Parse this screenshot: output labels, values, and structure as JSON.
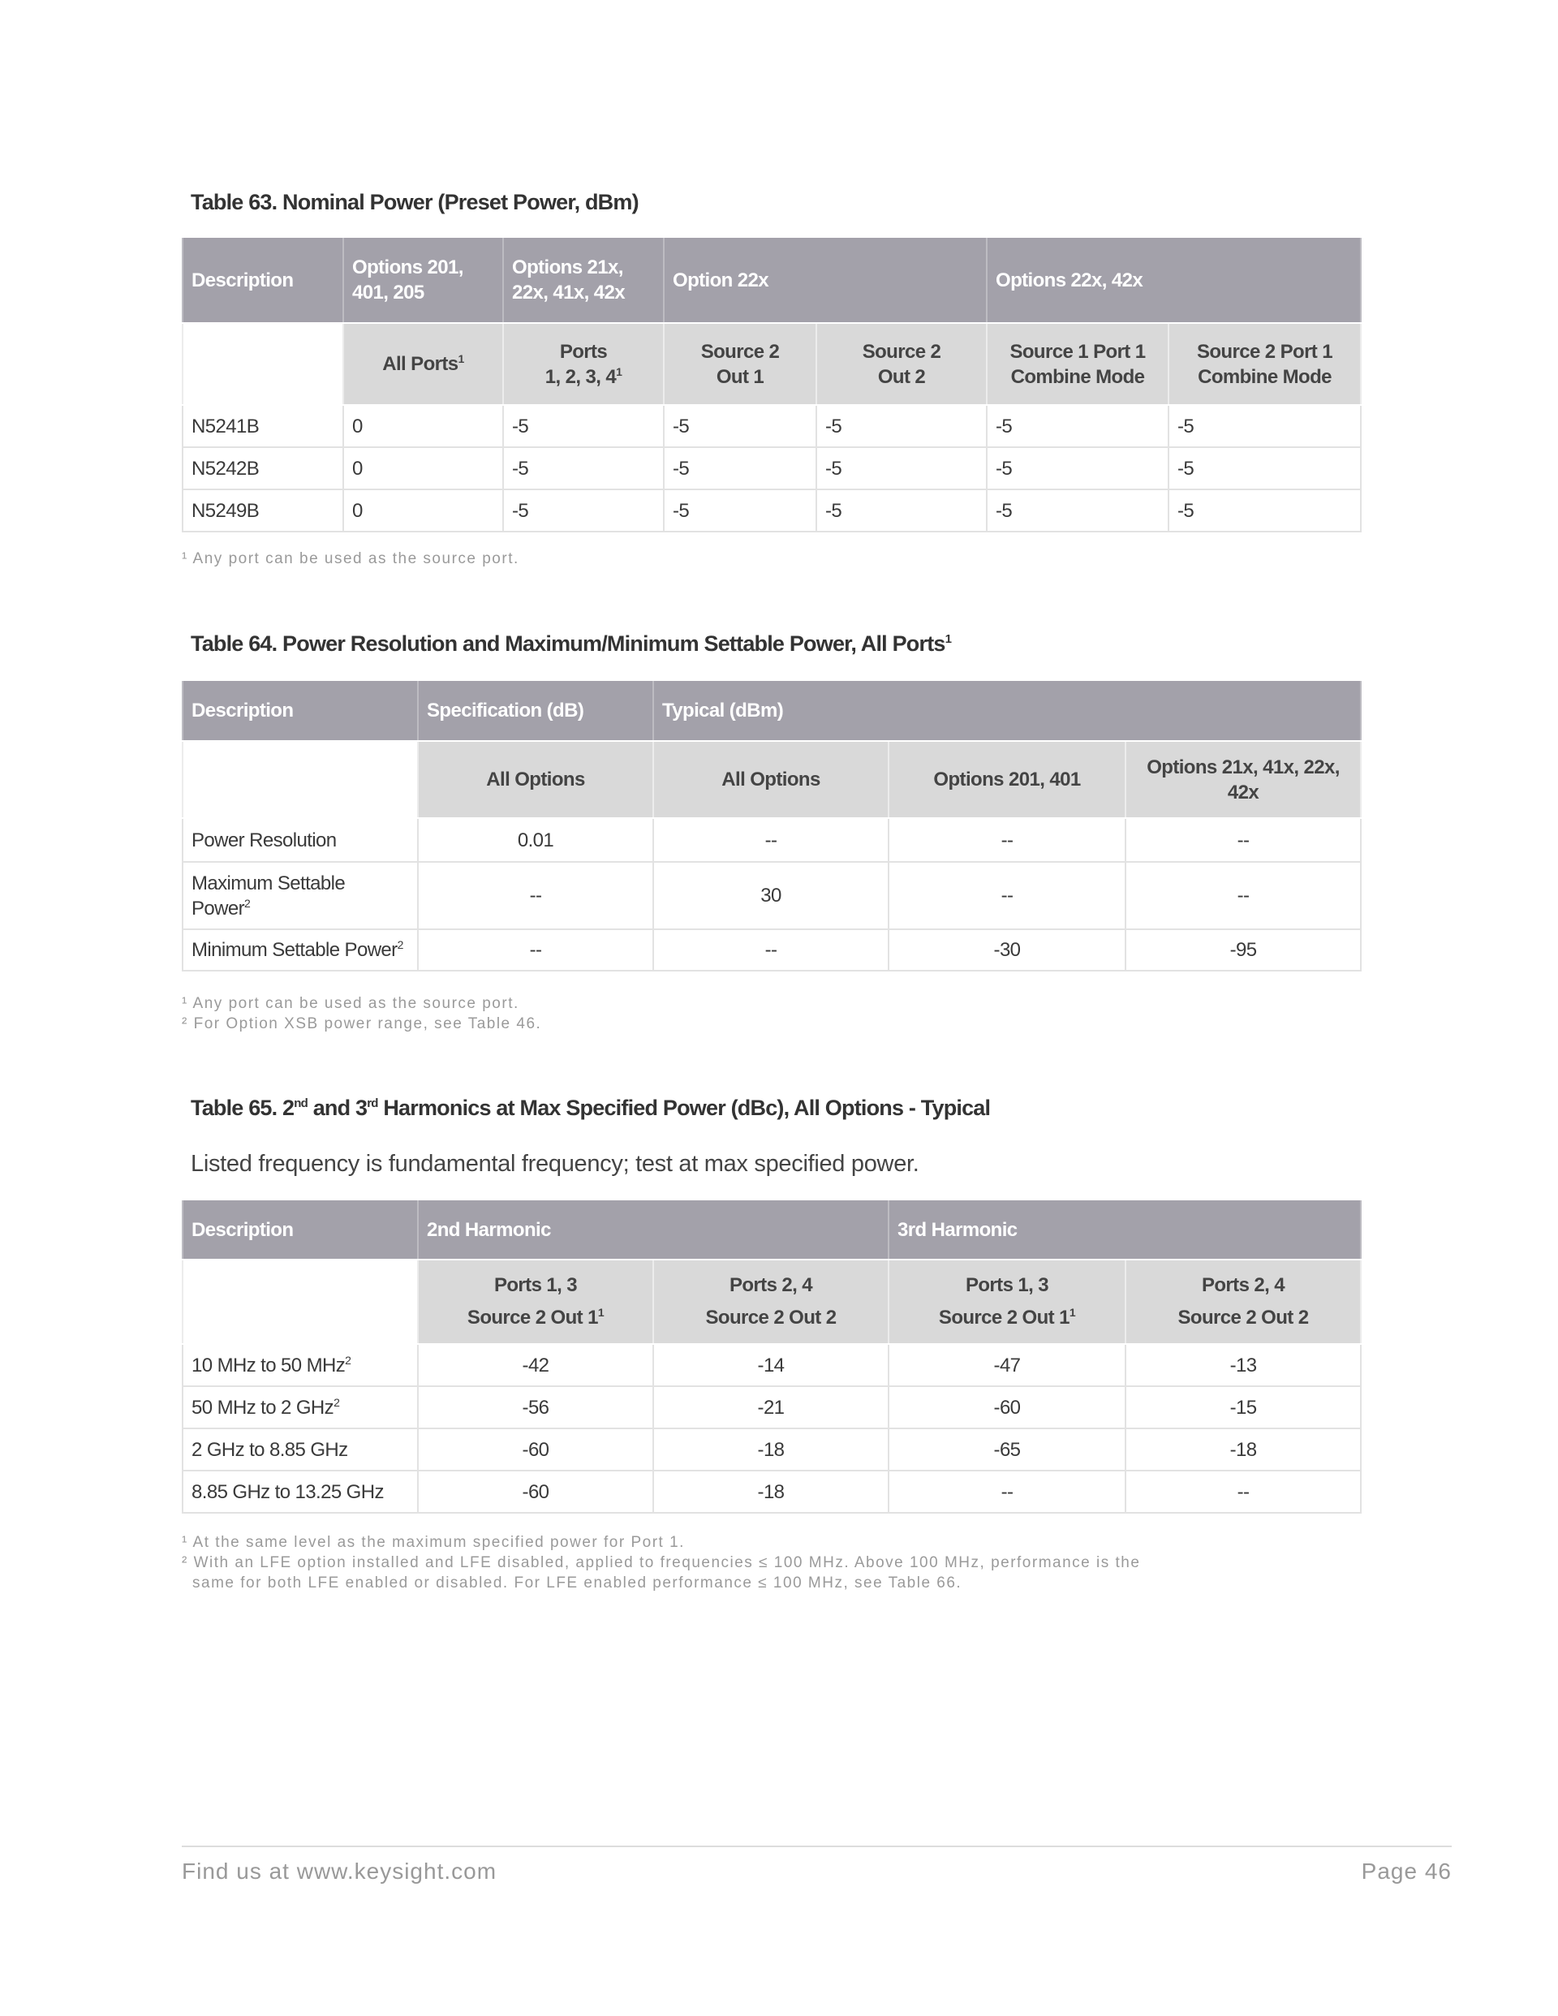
{
  "t63": {
    "title": "Table 63. Nominal Power (Preset Power, dBm)",
    "head": [
      "Description",
      "Options 201, 401, 205",
      "Options 21x, 22x, 41x, 42x",
      "Option 22x",
      "Options 22x, 42x"
    ],
    "sub": [
      "All Ports",
      "1",
      "Ports",
      "1, 2, 3, 4",
      "1",
      "Source 2",
      "Out 1",
      "Source 2",
      "Out 2",
      "Source 1 Port 1",
      "Combine Mode",
      "Source 2 Port 1",
      "Combine Mode"
    ],
    "rows": [
      [
        "N5241B",
        "0",
        "-5",
        "-5",
        "-5",
        "-5",
        "-5"
      ],
      [
        "N5242B",
        "0",
        "-5",
        "-5",
        "-5",
        "-5",
        "-5"
      ],
      [
        "N5249B",
        "0",
        "-5",
        "-5",
        "-5",
        "-5",
        "-5"
      ]
    ],
    "footnotes": [
      "¹ Any port can be used as the source port."
    ]
  },
  "t64": {
    "title": "Table 64. Power Resolution and Maximum/Minimum Settable Power, All Ports",
    "title_sup": "1",
    "head": [
      "Description",
      "Specification (dB)",
      "Typical (dBm)"
    ],
    "sub": [
      "All Options",
      "All Options",
      "Options 201, 401",
      "Options 21x, 41x, 22x, 42x"
    ],
    "rows": [
      [
        "Power Resolution",
        "",
        "0.01",
        "--",
        "--",
        "--"
      ],
      [
        "Maximum Settable Power",
        "2",
        "--",
        "30",
        "--",
        "--"
      ],
      [
        "Minimum Settable Power",
        "2",
        "--",
        "--",
        "-30",
        "-95"
      ]
    ],
    "footnotes": [
      "¹ Any port can be used as the source port.",
      "² For Option XSB power range, see Table 46."
    ]
  },
  "t65": {
    "title_a": "Table 65. 2",
    "sup1": "nd",
    "title_b": " and 3",
    "sup2": "rd",
    "title_c": " Harmonics at Max Specified Power (dBc), All Options - Typical",
    "subtitle": "Listed frequency is fundamental frequency; test at max specified power.",
    "head": [
      "Description",
      "2nd Harmonic",
      "3rd Harmonic"
    ],
    "sub": [
      "Ports 1, 3",
      "Source 2 Out 1",
      "1",
      "Ports 2, 4",
      "Source 2 Out 2"
    ],
    "rows": [
      [
        "10 MHz to 50 MHz",
        "2",
        "-42",
        "-14",
        "-47",
        "-13"
      ],
      [
        "50 MHz to 2 GHz",
        "2",
        "-56",
        "-21",
        "-60",
        "-15"
      ],
      [
        "2 GHz to 8.85 GHz",
        "",
        "-60",
        "-18",
        "-65",
        "-18"
      ],
      [
        "8.85 GHz to 13.25 GHz",
        "",
        "-60",
        "-18",
        "--",
        "--"
      ]
    ],
    "footnotes": [
      "¹ At the same level as the maximum specified power for Port 1.",
      "² With an LFE option installed and LFE disabled, applied to frequencies ≤ 100 MHz. Above 100 MHz, performance is the",
      "same for both LFE enabled or disabled. For LFE enabled performance ≤ 100 MHz, see Table 66."
    ]
  },
  "footer": {
    "left": "Find us at www.keysight.com",
    "right": "Page 46"
  }
}
